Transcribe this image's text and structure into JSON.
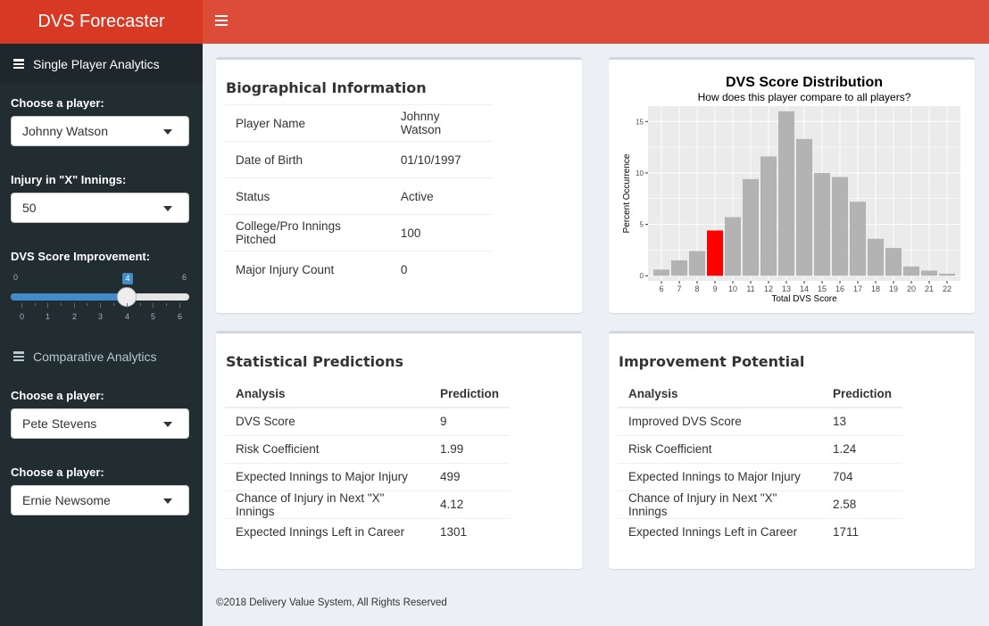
{
  "app": {
    "title": "DVS Forecaster"
  },
  "sidebar": {
    "single_section": "Single Player Analytics",
    "choose_player_label": "Choose a player:",
    "player_selected": "Johnny Watson",
    "injury_label": "Injury in \"X\" Innings:",
    "injury_selected": "50",
    "improvement_label": "DVS Score Improvement:",
    "slider": {
      "min": "0",
      "max": "6",
      "value": "4",
      "ticks": [
        "0",
        "1",
        "2",
        "3",
        "4",
        "5",
        "6"
      ]
    },
    "comparative_section": "Comparative Analytics",
    "compare_label_1": "Choose a player:",
    "compare_player_1": "Pete Stevens",
    "compare_label_2": "Choose a player:",
    "compare_player_2": "Ernie Newsome"
  },
  "bio": {
    "title": "Biographical Information",
    "rows": [
      {
        "label": "Player Name",
        "value": "Johnny Watson"
      },
      {
        "label": "Date of Birth",
        "value": "01/10/1997"
      },
      {
        "label": "Status",
        "value": "Active"
      },
      {
        "label": "College/Pro Innings Pitched",
        "value": "100"
      },
      {
        "label": "Major Injury Count",
        "value": "0"
      }
    ]
  },
  "stats": {
    "title": "Statistical Predictions",
    "header": [
      "Analysis",
      "Prediction"
    ],
    "rows": [
      {
        "label": "DVS Score",
        "value": "9"
      },
      {
        "label": "Risk Coefficient",
        "value": "1.99"
      },
      {
        "label": "Expected Innings to Major Injury",
        "value": "499"
      },
      {
        "label": "Chance of Injury in Next \"X\" Innings",
        "value": "4.12"
      },
      {
        "label": "Expected Innings Left in Career",
        "value": "1301"
      }
    ]
  },
  "improvement": {
    "title": "Improvement Potential",
    "header": [
      "Analysis",
      "Prediction"
    ],
    "rows": [
      {
        "label": "Improved DVS Score",
        "value": "13"
      },
      {
        "label": "Risk Coefficient",
        "value": "1.24"
      },
      {
        "label": "Expected Innings to Major Injury",
        "value": "704"
      },
      {
        "label": "Chance of Injury in Next \"X\" Innings",
        "value": "2.58"
      },
      {
        "label": "Expected Innings Left in Career",
        "value": "1711"
      }
    ]
  },
  "chart_data": {
    "type": "bar",
    "title": "DVS Score Distribution",
    "subtitle": "How does this player compare to all players?",
    "xlabel": "Total DVS Score",
    "ylabel": "Percent Occurrence",
    "categories": [
      "6",
      "7",
      "8",
      "9",
      "10",
      "11",
      "12",
      "13",
      "14",
      "15",
      "16",
      "17",
      "18",
      "19",
      "20",
      "21",
      "22"
    ],
    "values": [
      0.6,
      1.5,
      2.4,
      4.4,
      5.7,
      9.4,
      11.6,
      16.0,
      13.3,
      10.0,
      9.6,
      7.2,
      3.6,
      2.7,
      0.9,
      0.5,
      0.2
    ],
    "highlight_category": "9",
    "ylim": [
      -0.5,
      16.5
    ],
    "yticks": [
      0,
      5,
      10,
      15
    ],
    "grid": true,
    "colors": {
      "bar": "#b3b3b3",
      "highlight": "#ff0000",
      "panel": "#ebebeb",
      "gridline": "#ffffff"
    }
  },
  "footer": {
    "text": "©2018 Delivery Value System, All Rights Reserved"
  },
  "colors": {
    "header": "#dd4b39",
    "logo": "#d73925",
    "sidebar": "#222d32",
    "accent": "#428bca"
  }
}
